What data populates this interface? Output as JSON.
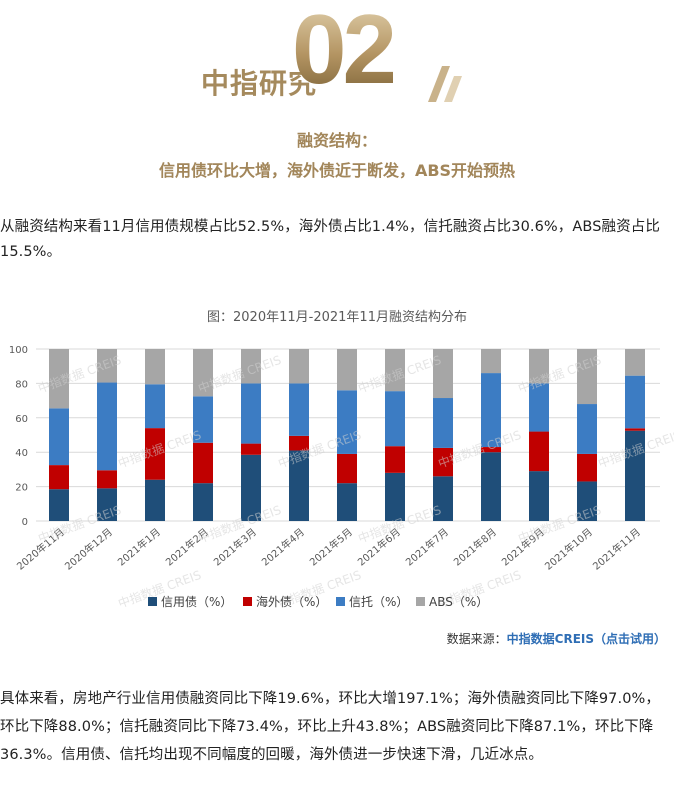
{
  "header": {
    "brand": "中指研究",
    "section_number": "02",
    "title_line1": "融资结构：",
    "title_line2": "信用债环比大增，海外债近于断发，ABS开始预热"
  },
  "intro_paragraph": "从融资结构来看11月信用债规模占比52.5%，海外债占比1.4%，信托融资占比30.6%，ABS融资占比15.5%。",
  "watermark": "中指数据 CREIS",
  "source": {
    "prefix": "数据来源：",
    "link_text": "中指数据CREIS（点击试用）"
  },
  "body_paragraph": "具体来看，房地产行业信用债融资同比下降19.6%，环比大增197.1%；海外债融资同比下降97.0%，环比下降88.0%；信托融资同比下降73.4%，环比上升43.8%；ABS融资同比下降87.1%，环比下降36.3%。信用债、信托均出现不同幅度的回暖，海外债进一步快速下滑，几近冰点。",
  "colors": {
    "credit": "#1f4e79",
    "overseas": "#c00000",
    "trust": "#3c7cc3",
    "abs": "#a6a6a6",
    "accent": "#a58a5d",
    "link": "#2f6eb5"
  },
  "chart_data": {
    "type": "bar",
    "stacked": true,
    "title": "图：2020年11月-2021年11月融资结构分布",
    "xlabel": "",
    "ylabel": "",
    "ylim": [
      0,
      100
    ],
    "yticks": [
      0,
      20,
      40,
      60,
      80,
      100
    ],
    "categories": [
      "2020年11月",
      "2020年12月",
      "2021年1月",
      "2021年2月",
      "2021年3月",
      "2021年4月",
      "2021年5月",
      "2021年6月",
      "2021年7月",
      "2021年8月",
      "2021年9月",
      "2021年10月",
      "2021年11月"
    ],
    "series": [
      {
        "name": "信用债（%）",
        "key": "credit",
        "values": [
          18.5,
          19.0,
          24.0,
          22.0,
          38.5,
          41.0,
          22.0,
          28.0,
          26.0,
          40.0,
          29.0,
          23.0,
          52.5
        ]
      },
      {
        "name": "海外债（%）",
        "key": "overseas",
        "values": [
          14.0,
          10.5,
          30.0,
          23.5,
          6.5,
          8.5,
          17.0,
          15.5,
          16.5,
          3.0,
          23.0,
          16.0,
          1.4
        ]
      },
      {
        "name": "信托（%）",
        "key": "trust",
        "values": [
          33.0,
          51.0,
          25.5,
          27.0,
          35.0,
          30.5,
          37.0,
          32.0,
          29.0,
          43.0,
          28.0,
          29.0,
          30.6
        ]
      },
      {
        "name": "ABS（%）",
        "key": "abs",
        "values": [
          34.5,
          19.5,
          20.5,
          27.5,
          20.0,
          20.0,
          24.0,
          24.5,
          28.5,
          14.0,
          20.0,
          32.0,
          15.5
        ]
      }
    ],
    "legend_position": "bottom"
  }
}
